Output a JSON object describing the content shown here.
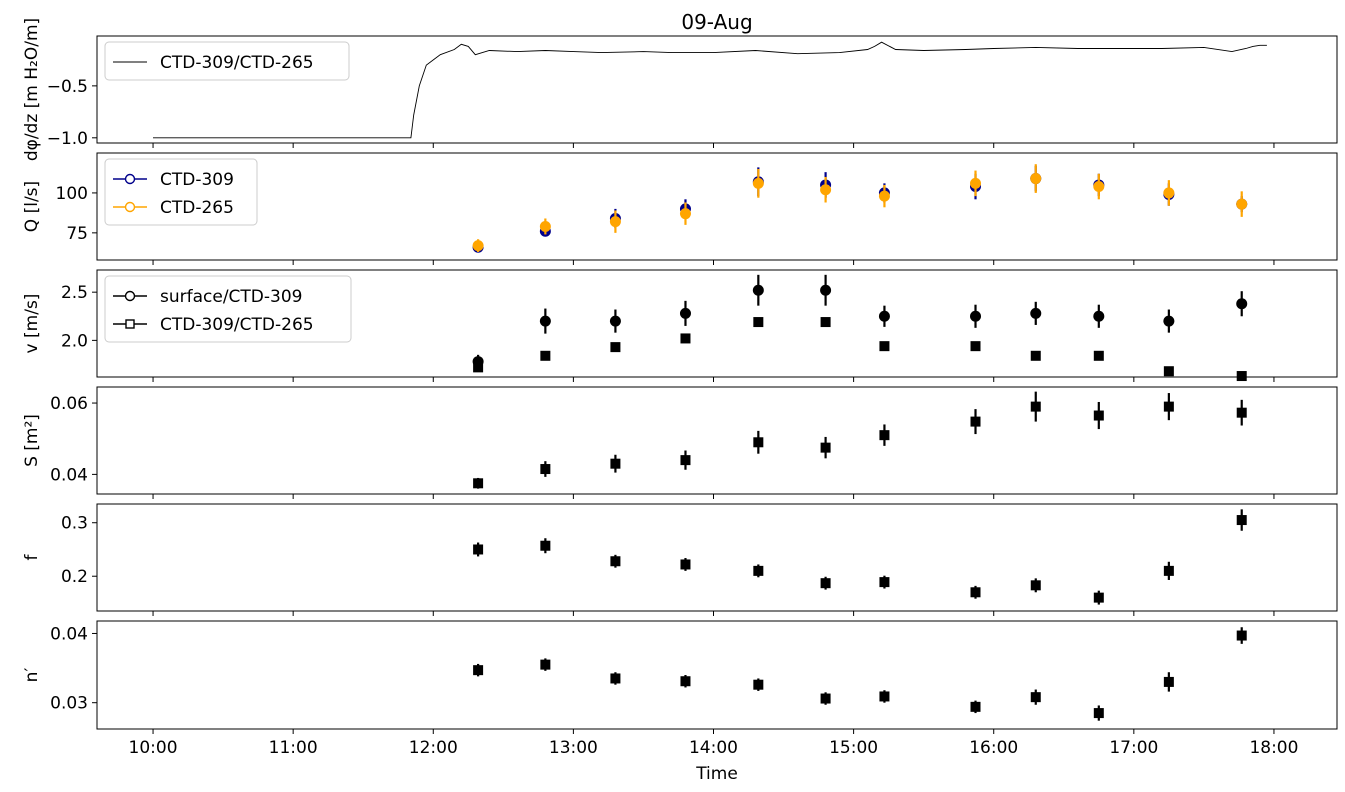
{
  "figure": {
    "title": "09-Aug",
    "xlabel": "Time"
  },
  "chart_data": [
    {
      "type": "line",
      "ylabel": "dφ/dz [m H₂O/m]",
      "ylim": [
        -1.05,
        -0.02
      ],
      "yticks": [
        -1.0,
        -0.5
      ],
      "ytick_labels": [
        "−1.0",
        "−0.5"
      ],
      "xlim": [
        9.6,
        18.45
      ],
      "legend": {
        "position": "top-left"
      },
      "series": [
        {
          "name": "CTD-309/CTD-265",
          "color": "#000000",
          "x": [
            10.0,
            10.5,
            11.0,
            11.5,
            11.84,
            11.86,
            11.9,
            11.95,
            12.0,
            12.05,
            12.15,
            12.2,
            12.25,
            12.3,
            12.4,
            12.6,
            12.8,
            13.0,
            13.2,
            13.5,
            13.7,
            14.0,
            14.3,
            14.6,
            14.9,
            15.1,
            15.15,
            15.2,
            15.3,
            15.5,
            15.8,
            16.0,
            16.3,
            16.6,
            16.9,
            17.2,
            17.5,
            17.7,
            17.8,
            17.85,
            17.9,
            17.95
          ],
          "y": [
            -1.0,
            -1.0,
            -1.0,
            -1.0,
            -1.0,
            -0.78,
            -0.5,
            -0.3,
            -0.25,
            -0.2,
            -0.15,
            -0.1,
            -0.12,
            -0.2,
            -0.16,
            -0.17,
            -0.16,
            -0.17,
            -0.18,
            -0.17,
            -0.18,
            -0.18,
            -0.16,
            -0.19,
            -0.18,
            -0.15,
            -0.12,
            -0.08,
            -0.15,
            -0.16,
            -0.15,
            -0.14,
            -0.13,
            -0.14,
            -0.14,
            -0.14,
            -0.13,
            -0.17,
            -0.14,
            -0.12,
            -0.11,
            -0.11
          ]
        }
      ]
    },
    {
      "type": "scatter",
      "ylabel": "Q [l/s]",
      "ylim": [
        58,
        125
      ],
      "yticks": [
        75,
        100
      ],
      "ytick_labels": [
        "75",
        "100"
      ],
      "xlim": [
        9.6,
        18.45
      ],
      "legend": {
        "position": "top-left"
      },
      "series": [
        {
          "name": "CTD-309",
          "color": "#00008b",
          "x": [
            12.32,
            12.8,
            13.3,
            13.8,
            14.32,
            14.8,
            15.22,
            15.87,
            16.3,
            16.75,
            17.25,
            17.77
          ],
          "y": [
            66,
            76,
            84,
            90,
            107,
            105,
            100,
            104,
            109,
            105,
            99,
            93
          ],
          "err": [
            2,
            3,
            6,
            6,
            9,
            8,
            6,
            8,
            8,
            7,
            7,
            5
          ]
        },
        {
          "name": "CTD-265",
          "color": "#ffa500",
          "x": [
            12.32,
            12.8,
            13.3,
            13.8,
            14.32,
            14.8,
            15.22,
            15.87,
            16.3,
            16.75,
            17.25,
            17.77
          ],
          "y": [
            67,
            79,
            82,
            87,
            106,
            102,
            98,
            106,
            109,
            104,
            100,
            93
          ],
          "err": [
            4,
            5,
            7,
            7,
            9,
            8,
            7,
            8,
            9,
            8,
            8,
            8
          ]
        }
      ]
    },
    {
      "type": "scatter",
      "ylabel": "v [m/s]",
      "ylim": [
        1.62,
        2.73
      ],
      "yticks": [
        2.0,
        2.5
      ],
      "ytick_labels": [
        "2.0",
        "2.5"
      ],
      "xlim": [
        9.6,
        18.45
      ],
      "legend": {
        "position": "top-left"
      },
      "series": [
        {
          "name": "surface/CTD-309",
          "marker": "circle",
          "color": "#000000",
          "x": [
            12.32,
            12.8,
            13.3,
            13.8,
            14.32,
            14.8,
            15.22,
            15.87,
            16.3,
            16.75,
            17.25,
            17.77
          ],
          "y": [
            1.78,
            2.2,
            2.2,
            2.28,
            2.52,
            2.52,
            2.25,
            2.25,
            2.28,
            2.25,
            2.2,
            2.38
          ],
          "err": [
            0.07,
            0.13,
            0.12,
            0.13,
            0.16,
            0.16,
            0.11,
            0.12,
            0.12,
            0.12,
            0.12,
            0.13
          ]
        },
        {
          "name": "CTD-309/CTD-265",
          "marker": "square",
          "color": "#000000",
          "x": [
            12.32,
            12.8,
            13.3,
            13.8,
            14.32,
            14.8,
            15.22,
            15.87,
            16.3,
            16.75,
            17.25,
            17.77
          ],
          "y": [
            1.72,
            1.84,
            1.93,
            2.02,
            2.19,
            2.19,
            1.94,
            1.94,
            1.84,
            1.84,
            1.68,
            1.63
          ],
          "err": [
            0.03,
            0.03,
            0.03,
            0.03,
            0.03,
            0.03,
            0.03,
            0.03,
            0.03,
            0.03,
            0.03,
            0.03
          ]
        }
      ]
    },
    {
      "type": "scatter",
      "ylabel": "S [m²]",
      "ylim": [
        0.0345,
        0.0645
      ],
      "yticks": [
        0.04,
        0.06
      ],
      "ytick_labels": [
        "0.04",
        "0.06"
      ],
      "xlim": [
        9.6,
        18.45
      ],
      "series": [
        {
          "marker": "square",
          "color": "#000000",
          "x": [
            12.32,
            12.8,
            13.3,
            13.8,
            14.32,
            14.8,
            15.22,
            15.87,
            16.3,
            16.75,
            17.25,
            17.77
          ],
          "y": [
            0.0375,
            0.0415,
            0.043,
            0.044,
            0.049,
            0.0475,
            0.051,
            0.0548,
            0.059,
            0.0565,
            0.059,
            0.0573
          ],
          "err": [
            0.0015,
            0.0022,
            0.0025,
            0.0027,
            0.0032,
            0.003,
            0.003,
            0.0035,
            0.0042,
            0.0038,
            0.0038,
            0.0036
          ]
        }
      ]
    },
    {
      "type": "scatter",
      "ylabel": "f",
      "ylim": [
        0.135,
        0.335
      ],
      "yticks": [
        0.2,
        0.3
      ],
      "ytick_labels": [
        "0.2",
        "0.3"
      ],
      "xlim": [
        9.6,
        18.45
      ],
      "series": [
        {
          "marker": "square",
          "color": "#000000",
          "x": [
            12.32,
            12.8,
            13.3,
            13.8,
            14.32,
            14.8,
            15.22,
            15.87,
            16.3,
            16.75,
            17.25,
            17.77
          ],
          "y": [
            0.25,
            0.257,
            0.228,
            0.222,
            0.21,
            0.187,
            0.189,
            0.17,
            0.183,
            0.16,
            0.21,
            0.305
          ],
          "err": [
            0.013,
            0.014,
            0.012,
            0.012,
            0.012,
            0.012,
            0.012,
            0.012,
            0.013,
            0.013,
            0.017,
            0.02
          ]
        }
      ]
    },
    {
      "type": "scatter",
      "ylabel": "n′",
      "ylim": [
        0.0262,
        0.0418
      ],
      "yticks": [
        0.03,
        0.04
      ],
      "ytick_labels": [
        "0.03",
        "0.04"
      ],
      "xlim": [
        9.6,
        18.45
      ],
      "xticks": [
        10,
        11,
        12,
        13,
        14,
        15,
        16,
        17,
        18
      ],
      "xtick_labels": [
        "10:00",
        "11:00",
        "12:00",
        "13:00",
        "14:00",
        "15:00",
        "16:00",
        "17:00",
        "18:00"
      ],
      "series": [
        {
          "marker": "square",
          "color": "#000000",
          "x": [
            12.32,
            12.8,
            13.3,
            13.8,
            14.32,
            14.8,
            15.22,
            15.87,
            16.3,
            16.75,
            17.25,
            17.77
          ],
          "y": [
            0.0347,
            0.0355,
            0.0335,
            0.0331,
            0.0326,
            0.0306,
            0.0309,
            0.0294,
            0.0308,
            0.0285,
            0.033,
            0.0397
          ],
          "err": [
            0.0009,
            0.0009,
            0.0009,
            0.0009,
            0.0009,
            0.0009,
            0.0009,
            0.0009,
            0.0011,
            0.0011,
            0.0014,
            0.0012
          ]
        }
      ]
    }
  ]
}
